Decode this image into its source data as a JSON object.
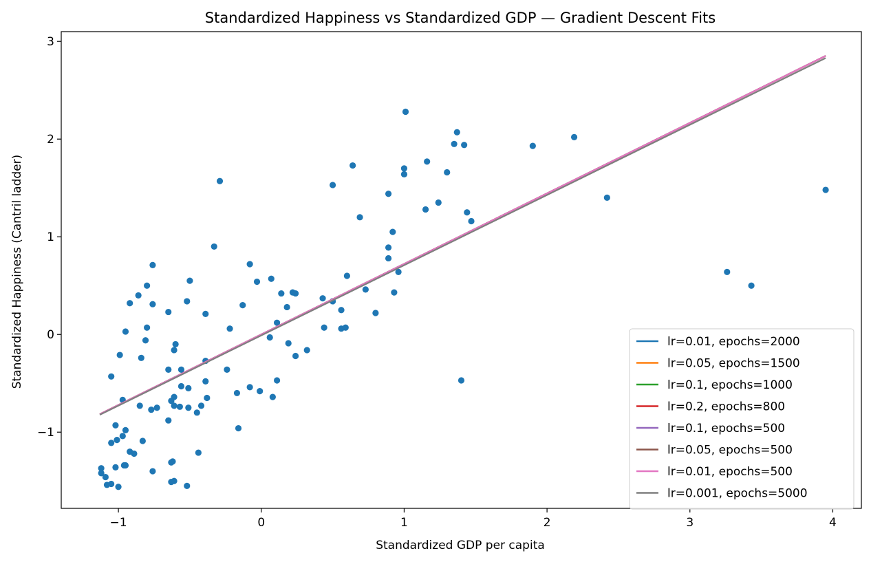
{
  "chart_data": {
    "type": "scatter",
    "title": "Standardized Happiness vs Standardized GDP — Gradient Descent Fits",
    "xlabel": "Standardized GDP per capita",
    "ylabel": "Standardized Happiness (Cantril ladder)",
    "xlim": [
      -1.4,
      4.2
    ],
    "ylim": [
      -1.78,
      3.1
    ],
    "xticks": [
      -1,
      0,
      1,
      2,
      3,
      4
    ],
    "xtick_labels": [
      "−1",
      "0",
      "1",
      "2",
      "3",
      "4"
    ],
    "yticks": [
      -1,
      0,
      1,
      2,
      3
    ],
    "ytick_labels": [
      "−1",
      "0",
      "1",
      "2",
      "3"
    ],
    "grid": false,
    "legend_position": "lower-right",
    "scatter": {
      "color": "#1f77b4",
      "points": [
        [
          1.01,
          2.28
        ],
        [
          1.37,
          2.07
        ],
        [
          1.35,
          1.95
        ],
        [
          1.42,
          1.94
        ],
        [
          1.9,
          1.93
        ],
        [
          2.19,
          2.02
        ],
        [
          1.16,
          1.77
        ],
        [
          1.0,
          1.7
        ],
        [
          1.0,
          1.64
        ],
        [
          1.3,
          1.66
        ],
        [
          0.64,
          1.73
        ],
        [
          0.5,
          1.53
        ],
        [
          -0.29,
          1.57
        ],
        [
          0.89,
          1.44
        ],
        [
          2.42,
          1.4
        ],
        [
          3.95,
          1.48
        ],
        [
          1.24,
          1.35
        ],
        [
          1.15,
          1.28
        ],
        [
          1.44,
          1.25
        ],
        [
          1.47,
          1.16
        ],
        [
          0.69,
          1.2
        ],
        [
          0.92,
          1.05
        ],
        [
          0.89,
          0.89
        ],
        [
          0.89,
          0.78
        ],
        [
          -0.33,
          0.9
        ],
        [
          -0.08,
          0.72
        ],
        [
          -0.76,
          0.71
        ],
        [
          0.96,
          0.64
        ],
        [
          3.26,
          0.64
        ],
        [
          3.43,
          0.5
        ],
        [
          0.6,
          0.6
        ],
        [
          0.07,
          0.57
        ],
        [
          -0.5,
          0.55
        ],
        [
          -0.03,
          0.54
        ],
        [
          -0.8,
          0.5
        ],
        [
          0.73,
          0.46
        ],
        [
          0.93,
          0.43
        ],
        [
          0.22,
          0.43
        ],
        [
          0.24,
          0.42
        ],
        [
          0.14,
          0.42
        ],
        [
          -0.86,
          0.4
        ],
        [
          0.43,
          0.37
        ],
        [
          -0.52,
          0.34
        ],
        [
          0.5,
          0.34
        ],
        [
          -0.92,
          0.32
        ],
        [
          -0.76,
          0.31
        ],
        [
          -0.13,
          0.3
        ],
        [
          0.18,
          0.28
        ],
        [
          0.56,
          0.25
        ],
        [
          -0.65,
          0.23
        ],
        [
          0.8,
          0.22
        ],
        [
          -0.39,
          0.21
        ],
        [
          0.11,
          0.12
        ],
        [
          -0.22,
          0.06
        ],
        [
          0.44,
          0.07
        ],
        [
          0.56,
          0.06
        ],
        [
          0.59,
          0.07
        ],
        [
          -0.8,
          0.07
        ],
        [
          -0.95,
          0.03
        ],
        [
          0.06,
          -0.03
        ],
        [
          -0.81,
          -0.06
        ],
        [
          0.19,
          -0.09
        ],
        [
          -0.6,
          -0.1
        ],
        [
          -0.61,
          -0.16
        ],
        [
          0.32,
          -0.16
        ],
        [
          -0.99,
          -0.21
        ],
        [
          0.24,
          -0.22
        ],
        [
          -0.84,
          -0.24
        ],
        [
          -0.39,
          -0.27
        ],
        [
          -0.65,
          -0.36
        ],
        [
          -0.56,
          -0.36
        ],
        [
          -0.24,
          -0.36
        ],
        [
          -1.05,
          -0.43
        ],
        [
          0.11,
          -0.47
        ],
        [
          -0.39,
          -0.48
        ],
        [
          1.4,
          -0.47
        ],
        [
          -0.56,
          -0.53
        ],
        [
          -0.08,
          -0.54
        ],
        [
          -0.51,
          -0.55
        ],
        [
          -0.01,
          -0.58
        ],
        [
          -0.17,
          -0.6
        ],
        [
          -0.61,
          -0.64
        ],
        [
          0.08,
          -0.64
        ],
        [
          -0.38,
          -0.65
        ],
        [
          -0.63,
          -0.68
        ],
        [
          -0.97,
          -0.67
        ],
        [
          -0.61,
          -0.73
        ],
        [
          -0.42,
          -0.73
        ],
        [
          -0.57,
          -0.74
        ],
        [
          -0.73,
          -0.75
        ],
        [
          -0.51,
          -0.75
        ],
        [
          -0.77,
          -0.77
        ],
        [
          -0.45,
          -0.8
        ],
        [
          -0.85,
          -0.73
        ],
        [
          -0.65,
          -0.88
        ],
        [
          -1.02,
          -0.93
        ],
        [
          -0.16,
          -0.96
        ],
        [
          -0.95,
          -0.98
        ],
        [
          -0.97,
          -1.04
        ],
        [
          -1.01,
          -1.08
        ],
        [
          -0.83,
          -1.09
        ],
        [
          -1.05,
          -1.11
        ],
        [
          -0.92,
          -1.2
        ],
        [
          -0.89,
          -1.22
        ],
        [
          -0.44,
          -1.21
        ],
        [
          -0.62,
          -1.3
        ],
        [
          -0.63,
          -1.31
        ],
        [
          -0.96,
          -1.34
        ],
        [
          -0.95,
          -1.34
        ],
        [
          -1.02,
          -1.36
        ],
        [
          -1.12,
          -1.37
        ],
        [
          -0.76,
          -1.4
        ],
        [
          -1.12,
          -1.42
        ],
        [
          -1.09,
          -1.46
        ],
        [
          -0.61,
          -1.5
        ],
        [
          -0.63,
          -1.51
        ],
        [
          -1.05,
          -1.53
        ],
        [
          -1.08,
          -1.54
        ],
        [
          -0.52,
          -1.55
        ],
        [
          -1.0,
          -1.56
        ]
      ]
    },
    "fit_range": [
      -1.13,
      3.95
    ],
    "series": [
      {
        "name": "lr=0.01, epochs=2000",
        "color": "#1f77b4",
        "slope": 0.722,
        "intercept": 0.0
      },
      {
        "name": "lr=0.05, epochs=1500",
        "color": "#ff7f0e",
        "slope": 0.722,
        "intercept": 0.0
      },
      {
        "name": "lr=0.1, epochs=1000",
        "color": "#2ca02c",
        "slope": 0.722,
        "intercept": 0.0
      },
      {
        "name": "lr=0.2, epochs=800",
        "color": "#d62728",
        "slope": 0.722,
        "intercept": 0.0
      },
      {
        "name": "lr=0.1, epochs=500",
        "color": "#9467bd",
        "slope": 0.722,
        "intercept": 0.0
      },
      {
        "name": "lr=0.05, epochs=500",
        "color": "#8c564b",
        "slope": 0.722,
        "intercept": 0.0
      },
      {
        "name": "lr=0.01, epochs=500",
        "color": "#e377c2",
        "slope": 0.722,
        "intercept": 0.0
      },
      {
        "name": "lr=0.001, epochs=5000",
        "color": "#7f7f7f",
        "slope": 0.719,
        "intercept": -0.01
      }
    ]
  }
}
